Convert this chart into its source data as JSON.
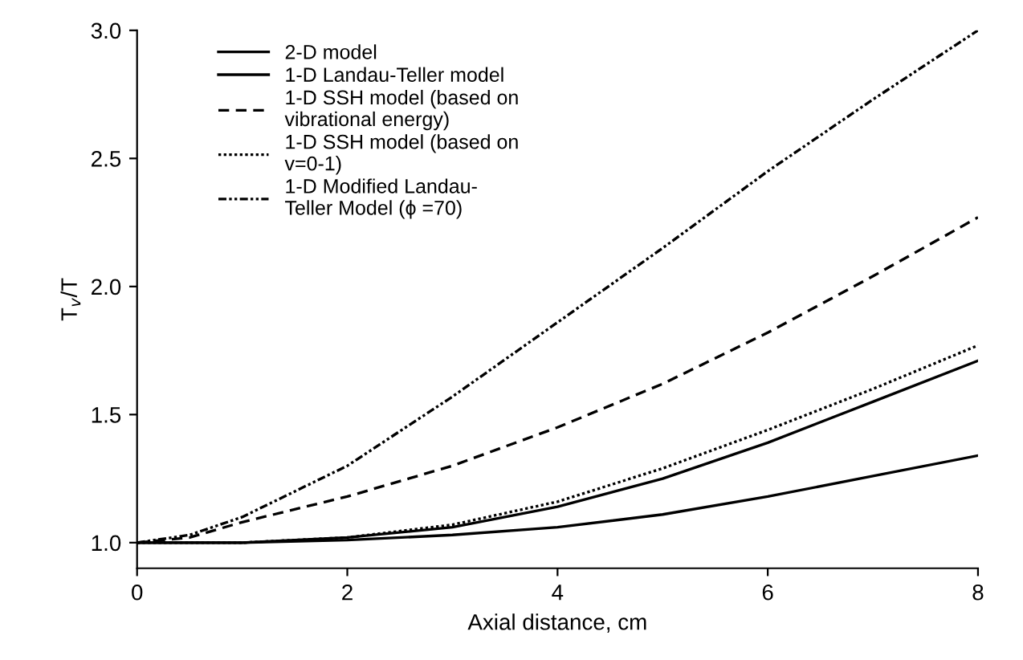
{
  "chart_data": {
    "type": "line",
    "xlabel": "Axial distance, cm",
    "ylabel": "T$_{v}$/T",
    "xlim": [
      0,
      8
    ],
    "ylim": [
      0.9,
      3.0
    ],
    "xticks": [
      0,
      2,
      4,
      6,
      8
    ],
    "yticks": [
      {
        "value": 1.0,
        "label": "1.0"
      },
      {
        "value": 1.5,
        "label": "1.5"
      },
      {
        "value": 2.0,
        "label": "2.0"
      },
      {
        "value": 2.5,
        "label": "2.5"
      },
      {
        "value": 3.0,
        "label": "3.0"
      }
    ],
    "grid": false,
    "legend": "top left",
    "marker": "none",
    "series": [
      {
        "name": "2-D model",
        "color": "#000000",
        "line_style": "solid",
        "x": [
          0,
          1,
          2,
          3,
          4,
          5,
          6,
          7,
          8
        ],
        "values": [
          1.0,
          1.0,
          1.01,
          1.03,
          1.06,
          1.11,
          1.18,
          1.26,
          1.34
        ]
      },
      {
        "name": "1-D Landau-Teller model",
        "color": "#000000",
        "line_style": "solid",
        "x": [
          0,
          1,
          2,
          3,
          4,
          5,
          6,
          7,
          8
        ],
        "values": [
          1.0,
          1.0,
          1.02,
          1.06,
          1.14,
          1.25,
          1.39,
          1.55,
          1.71
        ]
      },
      {
        "name": "1-D SSH model (based on\nvibrational energy)",
        "color": "#000000",
        "line_style": "dashed",
        "x": [
          0,
          0.5,
          1,
          2,
          3,
          4,
          5,
          6,
          7,
          8
        ],
        "values": [
          1.0,
          1.02,
          1.08,
          1.18,
          1.3,
          1.45,
          1.62,
          1.82,
          2.04,
          2.27
        ]
      },
      {
        "name": "1-D SSH model (based on\nv=0-1)",
        "color": "#000000",
        "line_style": "dotted",
        "x": [
          0,
          1,
          2,
          3,
          4,
          5,
          6,
          7,
          8
        ],
        "values": [
          1.0,
          1.0,
          1.02,
          1.07,
          1.16,
          1.29,
          1.44,
          1.6,
          1.77
        ]
      },
      {
        "name": "1-D Modified Landau-\nTeller Model (ϕ =70)",
        "color": "#000000",
        "line_style": "dashdot",
        "x": [
          0,
          0.5,
          1,
          2,
          3,
          4,
          5,
          6,
          7,
          8
        ],
        "values": [
          1.0,
          1.03,
          1.1,
          1.3,
          1.57,
          1.86,
          2.15,
          2.45,
          2.73,
          3.0
        ]
      }
    ]
  }
}
